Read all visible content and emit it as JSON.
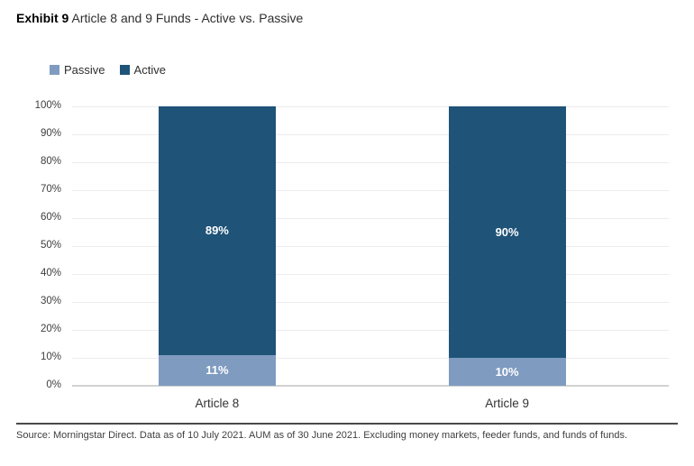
{
  "header": {
    "exhibit_label": "Exhibit 9",
    "title": "Article 8 and 9 Funds - Active vs. Passive"
  },
  "chart_data": {
    "type": "bar",
    "stacked": true,
    "title": "Article 8 and 9 Funds - Active vs. Passive",
    "categories": [
      "Article 8",
      "Article 9"
    ],
    "series": [
      {
        "name": "Passive",
        "color": "#7f9bc0",
        "values": [
          11,
          10
        ],
        "labels": [
          "11%",
          "10%"
        ]
      },
      {
        "name": "Active",
        "color": "#1f5378",
        "values": [
          89,
          90
        ],
        "labels": [
          "89%",
          "90%"
        ]
      }
    ],
    "ylim": [
      0,
      100
    ],
    "y_ticks": [
      "0%",
      "10%",
      "20%",
      "30%",
      "40%",
      "50%",
      "60%",
      "70%",
      "80%",
      "90%",
      "100%"
    ],
    "xlabel": "",
    "ylabel": "",
    "grid": true,
    "legend_position": "top-left",
    "value_label_color": "#ffffff",
    "gridline_color": "#ececec",
    "axisline_color": "#d2d2d2"
  },
  "footer": {
    "source": "Source: Morningstar Direct. Data as of 10 July 2021. AUM as of 30 June 2021. Excluding money markets, feeder funds, and funds of funds."
  }
}
